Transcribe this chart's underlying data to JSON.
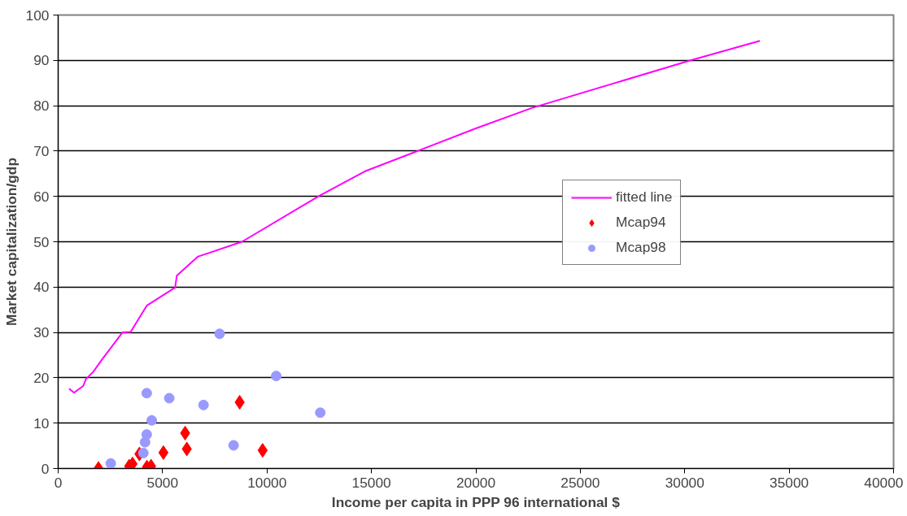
{
  "chart_data": {
    "type": "scatter",
    "xlabel": "Income per capita in PPP 96 international $",
    "ylabel": "Market capitalization/gdp",
    "xlim": [
      0,
      40000
    ],
    "xticks": [
      0,
      5000,
      10000,
      15000,
      20000,
      25000,
      30000,
      35000,
      40000
    ],
    "ylim": [
      0,
      100
    ],
    "yticks": [
      0,
      10,
      20,
      30,
      40,
      50,
      60,
      70,
      80,
      90,
      100
    ],
    "grid": "y",
    "legend": "right",
    "series": [
      {
        "name": "fitted line",
        "type": "line",
        "color": "#ff00ff",
        "marker": "none",
        "x": [
          520,
          760,
          1200,
          1330,
          1680,
          2080,
          3080,
          3470,
          4240,
          5600,
          5680,
          6680,
          8800,
          12530,
          14670,
          17200,
          20000,
          22680,
          30280,
          33600
        ],
        "values": [
          17.6,
          16.7,
          18.2,
          19.7,
          21.3,
          23.9,
          30.0,
          30.1,
          35.9,
          39.9,
          42.5,
          46.7,
          50.0,
          60.2,
          65.5,
          70.0,
          75.0,
          79.5,
          90.0,
          94.3
        ]
      },
      {
        "name": "Mcap94",
        "color": "#ff0000",
        "marker": "diamond",
        "x": [
          8690,
          6080,
          6160,
          9790,
          5040,
          3890,
          1930,
          3400,
          3560,
          4250,
          4450
        ],
        "values": [
          14.6,
          7.8,
          4.3,
          4.0,
          3.5,
          3.2,
          0,
          0.5,
          1.0,
          0.3,
          0.5
        ]
      },
      {
        "name": "Mcap98",
        "color": "#9999ff",
        "marker": "circle",
        "x": [
          7730,
          10440,
          4240,
          5320,
          6960,
          12550,
          4480,
          4240,
          4160,
          4080,
          8400,
          2520
        ],
        "values": [
          29.7,
          20.4,
          16.6,
          15.5,
          14.0,
          12.3,
          10.6,
          7.5,
          5.8,
          3.4,
          5.1,
          1.1
        ]
      }
    ]
  }
}
